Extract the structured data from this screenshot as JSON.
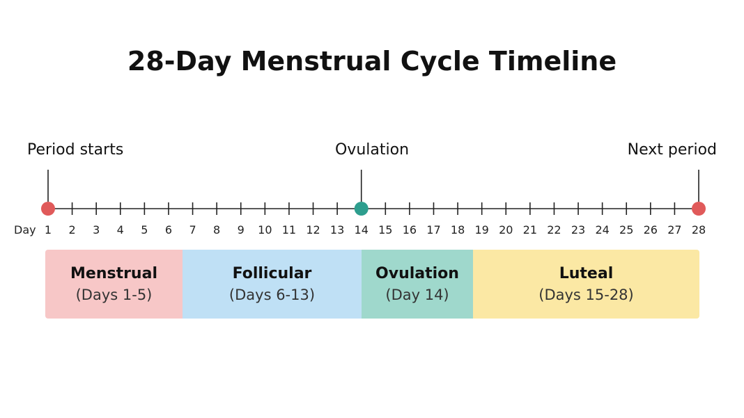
{
  "title": "28-Day Menstrual Cycle Timeline",
  "axis": {
    "label": "Day",
    "start_day": 1,
    "end_day": 28,
    "line_color": "#222222"
  },
  "markers": [
    {
      "label": "Period starts",
      "day": 1,
      "color": "#e05a5a"
    },
    {
      "label": "Ovulation",
      "day": 14,
      "color": "#2e9e8e"
    },
    {
      "label": "Next period",
      "day": 28,
      "color": "#e05a5a"
    }
  ],
  "phases": [
    {
      "name": "Menstrual",
      "range": "(Days 1-5)",
      "color": "#f7c7c7"
    },
    {
      "name": "Follicular",
      "range": "(Days 6-13)",
      "color": "#bfe0f5"
    },
    {
      "name": "Ovulation",
      "range": "(Day 14)",
      "color": "#9fd8cc"
    },
    {
      "name": "Luteal",
      "range": "(Days 15-28)",
      "color": "#fbe8a4"
    }
  ]
}
